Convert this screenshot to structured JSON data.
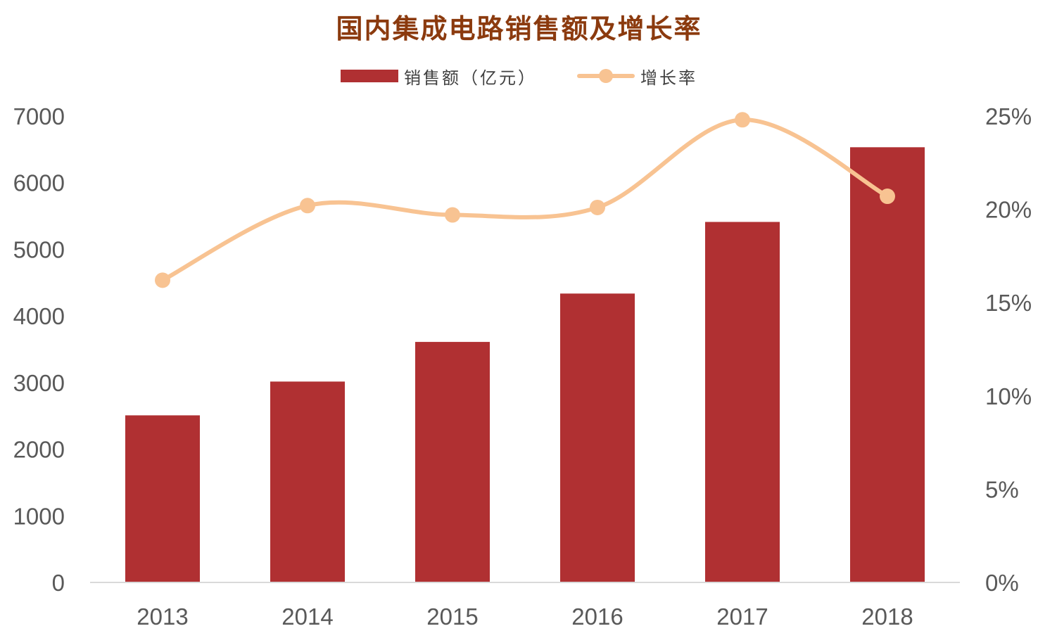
{
  "chart_data": {
    "type": "bar",
    "title": "国内集成电路销售额及增长率",
    "categories": [
      "2013",
      "2014",
      "2015",
      "2016",
      "2017",
      "2018"
    ],
    "series": [
      {
        "name": "销售额（亿元）",
        "type": "bar",
        "axis": "left",
        "color": "#B03032",
        "values": [
          2508,
          3015,
          3610,
          4336,
          5411,
          6532
        ]
      },
      {
        "name": "增长率",
        "type": "line",
        "smooth": true,
        "axis": "right",
        "color": "#F8C392",
        "values": [
          16.2,
          20.2,
          19.7,
          20.1,
          24.8,
          20.7
        ]
      }
    ],
    "y_left": {
      "ylim": [
        0,
        7000
      ],
      "ticks": [
        0,
        1000,
        2000,
        3000,
        4000,
        5000,
        6000,
        7000
      ],
      "tick_labels": [
        "0",
        "1000",
        "2000",
        "3000",
        "4000",
        "5000",
        "6000",
        "7000"
      ]
    },
    "y_right": {
      "ylim": [
        0,
        25
      ],
      "ticks": [
        0,
        5,
        10,
        15,
        20,
        25
      ],
      "tick_labels": [
        "0%",
        "5%",
        "10%",
        "15%",
        "20%",
        "25%"
      ]
    },
    "legend_position": "top-center",
    "grid": false,
    "title_color": "#8B3A0E"
  }
}
